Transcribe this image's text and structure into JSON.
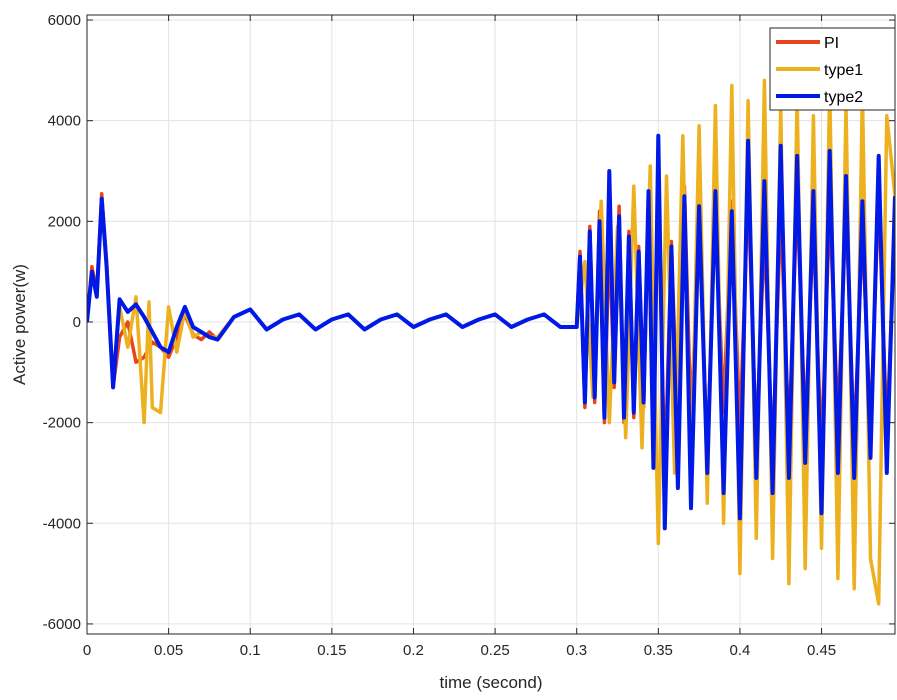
{
  "chart_data": {
    "type": "line",
    "title": "",
    "xlabel": "time (second)",
    "ylabel": "Active power(w)",
    "xlim": [
      0,
      0.495
    ],
    "ylim": [
      -6200,
      6100
    ],
    "xticks": [
      0,
      0.05,
      0.1,
      0.15,
      0.2,
      0.25,
      0.3,
      0.35,
      0.4,
      0.45
    ],
    "xtick_labels": [
      "0",
      "0.05",
      "0.1",
      "0.15",
      "0.2",
      "0.25",
      "0.3",
      "0.35",
      "0.4",
      "0.45"
    ],
    "yticks": [
      -6000,
      -4000,
      -2000,
      0,
      2000,
      4000,
      6000
    ],
    "ytick_labels": [
      "-6000",
      "-4000",
      "-2000",
      "0",
      "2000",
      "4000",
      "6000"
    ],
    "grid": true,
    "legend_position": "top-right",
    "series": [
      {
        "name": "PI",
        "color": "#e8451c",
        "x": [
          0,
          0.003,
          0.006,
          0.009,
          0.012,
          0.016,
          0.02,
          0.025,
          0.03,
          0.035,
          0.04,
          0.045,
          0.05,
          0.055,
          0.06,
          0.065,
          0.07,
          0.075,
          0.08,
          0.09,
          0.1,
          0.11,
          0.12,
          0.13,
          0.14,
          0.15,
          0.16,
          0.17,
          0.18,
          0.19,
          0.2,
          0.21,
          0.22,
          0.23,
          0.24,
          0.25,
          0.26,
          0.27,
          0.28,
          0.29,
          0.3,
          0.302,
          0.305,
          0.308,
          0.311,
          0.314,
          0.317,
          0.32,
          0.323,
          0.326,
          0.329,
          0.332,
          0.335,
          0.338,
          0.341,
          0.344,
          0.347,
          0.35,
          0.354,
          0.358,
          0.362,
          0.366,
          0.37,
          0.375,
          0.38,
          0.385,
          0.39,
          0.395,
          0.4,
          0.405,
          0.41,
          0.415,
          0.42,
          0.425,
          0.43,
          0.435,
          0.44,
          0.445,
          0.45,
          0.455,
          0.46,
          0.465,
          0.47,
          0.475,
          0.48,
          0.485,
          0.49,
          0.495
        ],
        "y": [
          0,
          1100,
          600,
          2550,
          1200,
          -1300,
          -300,
          0,
          -800,
          -700,
          -400,
          -500,
          -700,
          -300,
          150,
          -250,
          -350,
          -200,
          -350,
          100,
          250,
          -150,
          50,
          150,
          -150,
          50,
          150,
          -150,
          50,
          150,
          -100,
          50,
          150,
          -100,
          50,
          150,
          -100,
          50,
          150,
          -100,
          -100,
          1400,
          -1700,
          1900,
          -1600,
          2200,
          -2000,
          1700,
          -1300,
          2300,
          -2000,
          1800,
          -1900,
          1500,
          -1700,
          2200,
          -1800,
          2600,
          -3100,
          1600,
          -2300,
          2700,
          -2000,
          1900,
          -2600,
          2300,
          -1800,
          2400,
          -2200,
          2600,
          -2400,
          1800,
          -2700,
          2200,
          -2300,
          2500,
          -2100,
          1900,
          -2600,
          2300,
          -2000,
          2200,
          -2400,
          1800,
          -2100,
          2500,
          -2200,
          2000
        ]
      },
      {
        "name": "type1",
        "color": "#edb120",
        "x": [
          0,
          0.003,
          0.006,
          0.009,
          0.012,
          0.016,
          0.02,
          0.025,
          0.03,
          0.035,
          0.038,
          0.04,
          0.045,
          0.05,
          0.055,
          0.06,
          0.065,
          0.07,
          0.075,
          0.08,
          0.09,
          0.1,
          0.11,
          0.12,
          0.13,
          0.14,
          0.15,
          0.16,
          0.17,
          0.18,
          0.19,
          0.2,
          0.21,
          0.22,
          0.23,
          0.24,
          0.25,
          0.26,
          0.27,
          0.28,
          0.29,
          0.3,
          0.305,
          0.31,
          0.315,
          0.32,
          0.325,
          0.33,
          0.335,
          0.34,
          0.345,
          0.35,
          0.355,
          0.36,
          0.365,
          0.37,
          0.375,
          0.38,
          0.385,
          0.39,
          0.395,
          0.4,
          0.405,
          0.41,
          0.415,
          0.42,
          0.425,
          0.43,
          0.435,
          0.44,
          0.445,
          0.45,
          0.455,
          0.46,
          0.465,
          0.47,
          0.475,
          0.48,
          0.485,
          0.49,
          0.495
        ],
        "y": [
          0,
          1000,
          500,
          2450,
          1100,
          -1200,
          300,
          -500,
          500,
          -2000,
          400,
          -1700,
          -1800,
          300,
          -600,
          250,
          -300,
          -200,
          -300,
          -300,
          100,
          250,
          -150,
          50,
          150,
          -150,
          50,
          150,
          -150,
          50,
          150,
          -100,
          50,
          150,
          -100,
          50,
          150,
          -100,
          50,
          150,
          -100,
          -100,
          1200,
          -1500,
          2400,
          -2000,
          1900,
          -2300,
          2700,
          -2500,
          3100,
          -4400,
          2900,
          -3000,
          3700,
          -3300,
          3900,
          -3600,
          4300,
          -4000,
          4700,
          -5000,
          4400,
          -4300,
          4800,
          -4700,
          4300,
          -5200,
          4500,
          -4900,
          4100,
          -4500,
          4700,
          -5100,
          4300,
          -5300,
          4600,
          -4700,
          -5600,
          4100,
          2500
        ]
      },
      {
        "name": "type2",
        "color": "#0019e6",
        "x": [
          0,
          0.003,
          0.006,
          0.009,
          0.012,
          0.016,
          0.02,
          0.025,
          0.03,
          0.035,
          0.04,
          0.045,
          0.05,
          0.055,
          0.06,
          0.065,
          0.07,
          0.075,
          0.08,
          0.09,
          0.1,
          0.11,
          0.12,
          0.13,
          0.14,
          0.15,
          0.16,
          0.17,
          0.18,
          0.19,
          0.2,
          0.21,
          0.22,
          0.23,
          0.24,
          0.25,
          0.26,
          0.27,
          0.28,
          0.29,
          0.3,
          0.302,
          0.305,
          0.308,
          0.311,
          0.314,
          0.317,
          0.32,
          0.323,
          0.326,
          0.329,
          0.332,
          0.335,
          0.338,
          0.341,
          0.344,
          0.347,
          0.35,
          0.354,
          0.358,
          0.362,
          0.366,
          0.37,
          0.375,
          0.38,
          0.385,
          0.39,
          0.395,
          0.4,
          0.405,
          0.41,
          0.415,
          0.42,
          0.425,
          0.43,
          0.435,
          0.44,
          0.445,
          0.45,
          0.455,
          0.46,
          0.465,
          0.47,
          0.475,
          0.48,
          0.485,
          0.49,
          0.495
        ],
        "y": [
          0,
          1000,
          500,
          2450,
          1100,
          -1300,
          450,
          200,
          350,
          100,
          -200,
          -500,
          -600,
          -100,
          300,
          -100,
          -200,
          -300,
          -350,
          100,
          250,
          -150,
          50,
          150,
          -150,
          50,
          150,
          -150,
          50,
          150,
          -100,
          50,
          150,
          -100,
          50,
          150,
          -100,
          50,
          150,
          -100,
          -100,
          1300,
          -1600,
          1800,
          -1500,
          2000,
          -1900,
          3000,
          -1200,
          2100,
          -1900,
          1700,
          -1800,
          1400,
          -1600,
          2600,
          -2900,
          3700,
          -4100,
          1500,
          -3300,
          2500,
          -3700,
          2300,
          -3000,
          2600,
          -3400,
          2200,
          -3900,
          3600,
          -3100,
          2800,
          -3400,
          3500,
          -3100,
          3300,
          -2800,
          2600,
          -3800,
          3400,
          -3000,
          2900,
          -3100,
          2400,
          -2700,
          3300,
          -3000,
          2500
        ]
      }
    ]
  }
}
